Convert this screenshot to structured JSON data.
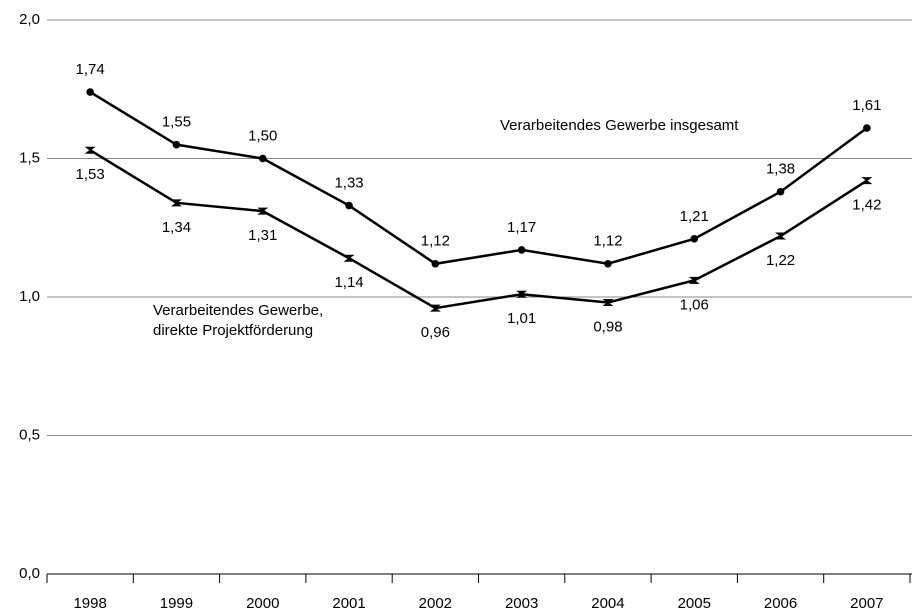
{
  "chart_data": {
    "type": "line",
    "categories": [
      "1998",
      "1999",
      "2000",
      "2001",
      "2002",
      "2003",
      "2004",
      "2005",
      "2006",
      "2007"
    ],
    "series": [
      {
        "name": "Verarbeitendes Gewerbe insgesamt",
        "color": "#000000",
        "values": [
          1.74,
          1.55,
          1.5,
          1.33,
          1.12,
          1.17,
          1.12,
          1.21,
          1.38,
          1.61
        ],
        "value_labels": [
          "1,74",
          "1,55",
          "1,50",
          "1,33",
          "1,12",
          "1,17",
          "1,12",
          "1,21",
          "1,38",
          "1,61"
        ]
      },
      {
        "name": "Verarbeitendes Gewerbe, direkte Projektförderung",
        "color": "#000000",
        "values": [
          1.53,
          1.34,
          1.31,
          1.14,
          0.96,
          1.01,
          0.98,
          1.06,
          1.22,
          1.42
        ],
        "value_labels": [
          "1,53",
          "1,34",
          "1,31",
          "1,14",
          "0,96",
          "1,01",
          "0,98",
          "1,06",
          "1,22",
          "1,42"
        ]
      }
    ],
    "ylim": [
      0,
      2
    ],
    "yticks": [
      {
        "value": 0,
        "label": "0,0"
      },
      {
        "value": 0.5,
        "label": "0,5"
      },
      {
        "value": 1,
        "label": "1,0"
      },
      {
        "value": 1.5,
        "label": "1,5"
      },
      {
        "value": 2,
        "label": "2,0"
      }
    ],
    "grid": true
  }
}
